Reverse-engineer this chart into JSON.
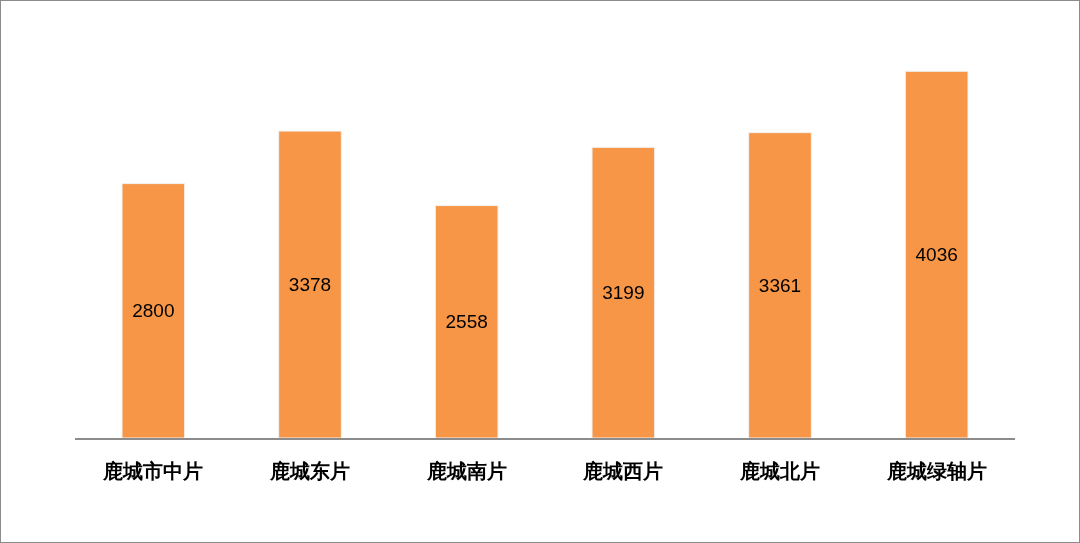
{
  "chart_data": {
    "type": "bar",
    "categories": [
      "鹿城市中片",
      "鹿城东片",
      "鹿城南片",
      "鹿城西片",
      "鹿城北片",
      "鹿城绿轴片"
    ],
    "values": [
      2800,
      3378,
      2558,
      3199,
      3361,
      4036
    ],
    "color": "#f79646",
    "data_labels": true,
    "tick_labels": "x"
  }
}
